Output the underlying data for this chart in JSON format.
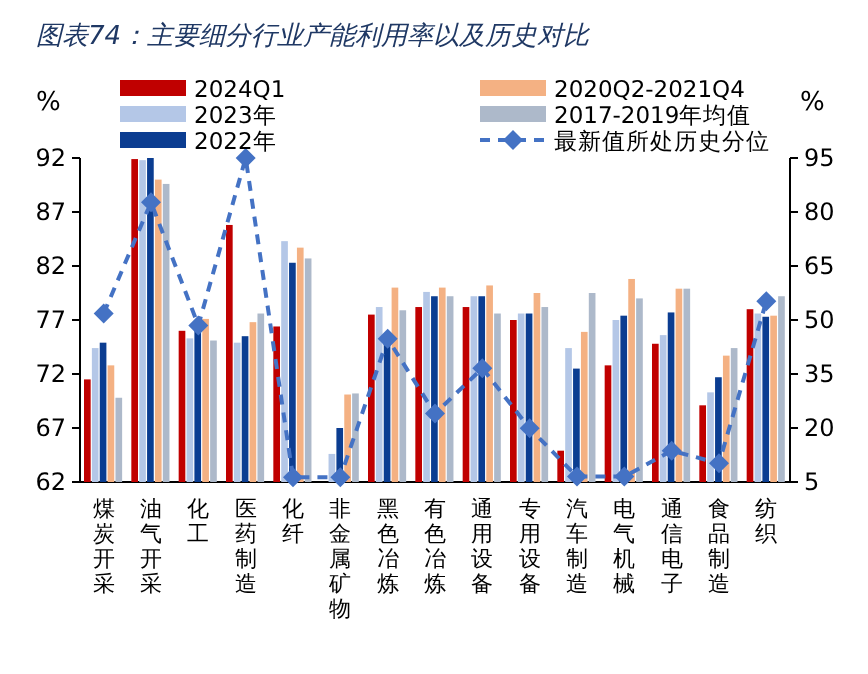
{
  "chart_data": {
    "type": "bar",
    "title": "图表74：主要细分行业产能利用率以及历史对比",
    "ylabel": "%",
    "y2label": "%",
    "categories": [
      "煤炭开采",
      "油气开采",
      "化工",
      "医药制造",
      "化纤",
      "非金属矿物",
      "黑色冶炼",
      "有色冶炼",
      "通用设备",
      "专用设备",
      "汽车制造",
      "电气机械",
      "通信电子",
      "食品制造",
      "纺织"
    ],
    "series": [
      {
        "name": "2024Q1",
        "color": "#c00000",
        "values": [
          71.5,
          91.9,
          76.0,
          85.8,
          76.4,
          null,
          77.5,
          78.2,
          78.2,
          77.0,
          64.9,
          72.8,
          74.8,
          69.1,
          78.0
        ]
      },
      {
        "name": "2023年",
        "color": "#b4c7e7",
        "values": [
          74.4,
          91.8,
          75.3,
          74.9,
          84.3,
          64.6,
          78.2,
          79.6,
          79.2,
          77.6,
          74.4,
          77.0,
          75.6,
          70.3,
          77.6
        ]
      },
      {
        "name": "2022年",
        "color": "#0b3d91",
        "values": [
          74.9,
          92,
          76.4,
          75.5,
          82.3,
          67.0,
          75.1,
          79.2,
          79.2,
          77.6,
          72.5,
          77.4,
          77.7,
          71.7,
          77.3
        ]
      },
      {
        "name": "2020Q2-2021Q4",
        "color": "#f4b183",
        "values": [
          72.8,
          90.0,
          77.1,
          76.8,
          83.7,
          70.1,
          80.0,
          80.0,
          80.2,
          79.5,
          75.9,
          80.8,
          79.9,
          73.7,
          77.4
        ]
      },
      {
        "name": "2017-2019年均值",
        "color": "#adb9ca",
        "values": [
          69.8,
          89.6,
          75.1,
          77.6,
          82.7,
          70.2,
          77.9,
          79.2,
          77.6,
          78.2,
          79.5,
          79.0,
          79.9,
          74.4,
          79.2
        ]
      },
      {
        "name": "最新值所处历史分位",
        "type": "line",
        "axis": "y2",
        "color": "#4472c4",
        "marker": "diamond",
        "line_style": "dashed",
        "values": [
          51.8,
          82.7,
          48.5,
          95,
          6.3,
          6.3,
          44.8,
          24.0,
          36.6,
          19.9,
          6.5,
          6.5,
          13.7,
          10.2,
          55.2
        ]
      }
    ],
    "ylim": [
      62,
      92
    ],
    "yticks": [
      62,
      67,
      72,
      77,
      82,
      87,
      92
    ],
    "y2lim": [
      5,
      95
    ],
    "y2ticks": [
      5,
      20,
      35,
      50,
      65,
      80,
      95
    ],
    "legend": "top"
  }
}
